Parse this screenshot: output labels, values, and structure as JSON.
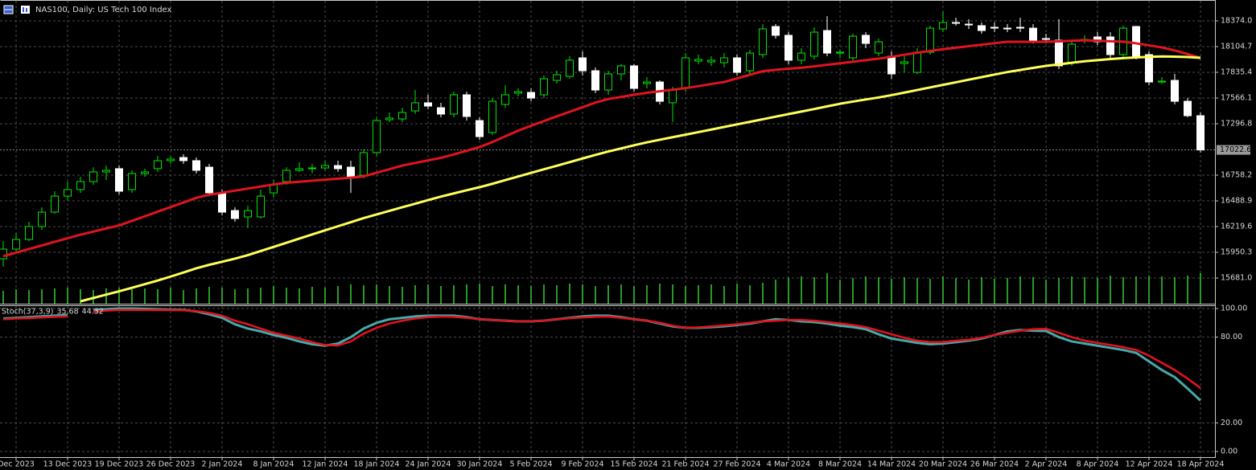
{
  "chart_data": [
    {
      "type": "candlestick",
      "title": "NAS100, Daily:  US Tech 100 Index",
      "categories": [
        null,
        "Dec 2023",
        null,
        null,
        null,
        "13 Dec 2023",
        null,
        null,
        null,
        "19 Dec 2023",
        null,
        null,
        null,
        "26 Dec 2023",
        null,
        null,
        null,
        "2 Jan 2024",
        null,
        null,
        null,
        "8 Jan 2024",
        null,
        null,
        null,
        "12 Jan 2024",
        null,
        null,
        null,
        "18 Jan 2024",
        null,
        null,
        null,
        "24 Jan 2024",
        null,
        null,
        null,
        "30 Jan 2024",
        null,
        null,
        null,
        "5 Feb 2024",
        null,
        null,
        null,
        "9 Feb 2024",
        null,
        null,
        null,
        "15 Feb 2024",
        null,
        null,
        null,
        "21 Feb 2024",
        null,
        null,
        null,
        "27 Feb 2024",
        null,
        null,
        null,
        "4 Mar 2024",
        null,
        null,
        null,
        "8 Mar 2024",
        null,
        null,
        null,
        "14 Mar 2024",
        null,
        null,
        null,
        "20 Mar 2024",
        null,
        null,
        null,
        "26 Mar 2024",
        null,
        null,
        null,
        "2 Apr 2024",
        null,
        null,
        null,
        "8 Apr 2024",
        null,
        null,
        null,
        "12 Apr 2024",
        null,
        null,
        null,
        "18 Apr 2024"
      ],
      "open": [
        15883,
        15984,
        16085,
        16220,
        16371,
        16539,
        16607,
        16691,
        16792,
        16826,
        16607,
        16775,
        16826,
        16910,
        16943,
        16910,
        16842,
        16573,
        16388,
        16321,
        16321,
        16573,
        16691,
        16809,
        16826,
        16834,
        16859,
        16842,
        16758,
        16994,
        17339,
        17347,
        17431,
        17516,
        17465,
        17398,
        17600,
        17330,
        17204,
        17499,
        17617,
        17625,
        17600,
        17751,
        17793,
        17987,
        17852,
        17650,
        17819,
        17903,
        17718,
        17734,
        17516,
        17667,
        17953,
        17945,
        17936,
        17987,
        17852,
        18021,
        18315,
        18223,
        17962,
        18004,
        18273,
        18037,
        17987,
        18223,
        18037,
        18004,
        17928,
        17835,
        18046,
        18290,
        18357,
        18340,
        18324,
        18307,
        18298,
        18307,
        18298,
        18189,
        18172,
        17936,
        18172,
        18206,
        18206,
        18021,
        18315,
        18021,
        17734,
        17751,
        17532,
        17381
      ],
      "high": [
        16068,
        16152,
        16270,
        16422,
        16590,
        16691,
        16741,
        16842,
        16859,
        16859,
        16809,
        16826,
        16960,
        16960,
        16977,
        16943,
        16876,
        16607,
        16422,
        16438,
        16607,
        16708,
        16842,
        16893,
        16876,
        16910,
        16910,
        16910,
        17028,
        17364,
        17415,
        17465,
        17650,
        17600,
        17516,
        17633,
        17633,
        17364,
        17566,
        17701,
        17667,
        17667,
        17802,
        17852,
        18004,
        18054,
        17886,
        17852,
        17920,
        17920,
        17785,
        17751,
        17684,
        18037,
        18021,
        18004,
        18037,
        18021,
        18071,
        18340,
        18340,
        18256,
        18088,
        18307,
        18424,
        18071,
        18239,
        18256,
        18189,
        18054,
        18004,
        18088,
        18324,
        18475,
        18408,
        18391,
        18357,
        18357,
        18340,
        18408,
        18340,
        18239,
        18391,
        18172,
        18223,
        18256,
        18256,
        18324,
        18324,
        18054,
        17785,
        17819,
        17566,
        17415
      ],
      "low": [
        15799,
        15950,
        16068,
        16186,
        16354,
        16489,
        16573,
        16657,
        16708,
        16556,
        16573,
        16741,
        16792,
        16876,
        16876,
        16775,
        16539,
        16337,
        16270,
        16203,
        16304,
        16523,
        16657,
        16792,
        16775,
        16809,
        16792,
        16573,
        16725,
        16960,
        17314,
        17314,
        17398,
        17448,
        17364,
        17364,
        17330,
        17129,
        17179,
        17465,
        17583,
        17532,
        17566,
        17718,
        17768,
        17802,
        17617,
        17600,
        17751,
        17633,
        17667,
        17499,
        17314,
        17633,
        17920,
        17903,
        17886,
        17802,
        17819,
        17987,
        18189,
        17920,
        17920,
        17970,
        18004,
        17987,
        17953,
        18088,
        18004,
        17768,
        17835,
        17819,
        18021,
        18256,
        18324,
        18290,
        18239,
        18256,
        18256,
        18256,
        18138,
        18138,
        17869,
        17903,
        18138,
        18122,
        17987,
        17987,
        17970,
        17701,
        17718,
        17499,
        17364,
        16994
      ],
      "close": [
        15984,
        16085,
        16220,
        16371,
        16539,
        16607,
        16691,
        16792,
        16809,
        16590,
        16775,
        16792,
        16910,
        16927,
        16910,
        16809,
        16573,
        16371,
        16304,
        16388,
        16539,
        16657,
        16809,
        16826,
        16834,
        16859,
        16826,
        16741,
        16994,
        17330,
        17356,
        17415,
        17516,
        17482,
        17398,
        17600,
        17373,
        17162,
        17532,
        17600,
        17633,
        17566,
        17768,
        17810,
        17962,
        17852,
        17650,
        17819,
        17903,
        17667,
        17734,
        17532,
        17650,
        17987,
        17970,
        17962,
        17987,
        17835,
        18037,
        18290,
        18223,
        17962,
        18037,
        18256,
        18037,
        18046,
        18214,
        18138,
        18155,
        17819,
        17945,
        18046,
        18298,
        18357,
        18349,
        18332,
        18273,
        18298,
        18290,
        18298,
        18172,
        18180,
        17903,
        18130,
        18180,
        18155,
        18021,
        18298,
        18004,
        17734,
        17743,
        17532,
        17381,
        17022.6
      ],
      "bull_color": "#00e600",
      "bear_color": "#ffffff",
      "series": [
        {
          "color": "#e0141e",
          "values": [
            15909,
            15947,
            15985,
            16022,
            16060,
            16097,
            16135,
            16167,
            16200,
            16232,
            16279,
            16327,
            16376,
            16424,
            16472,
            16521,
            16553,
            16574,
            16596,
            16618,
            16639,
            16661,
            16678,
            16689,
            16700,
            16711,
            16722,
            16732,
            16746,
            16783,
            16821,
            16859,
            16886,
            16913,
            16940,
            16976,
            17014,
            17052,
            17105,
            17165,
            17224,
            17276,
            17325,
            17374,
            17422,
            17470,
            17518,
            17556,
            17578,
            17600,
            17621,
            17637,
            17653,
            17670,
            17691,
            17713,
            17734,
            17772,
            17810,
            17847,
            17862,
            17873,
            17883,
            17898,
            17914,
            17930,
            17946,
            17963,
            17979,
            17998,
            18019,
            18041,
            18060,
            18077,
            18093,
            18109,
            18125,
            18141,
            18155,
            18155,
            18155,
            18155,
            18160,
            18166,
            18171,
            18167,
            18161,
            18156,
            18139,
            18118,
            18096,
            18064,
            18026,
            17987
          ]
        },
        {
          "color": "#ffff5a",
          "values": [
            null,
            null,
            null,
            null,
            null,
            null,
            15437,
            15472,
            15507,
            15542,
            15579,
            15617,
            15654,
            15696,
            15739,
            15783,
            15819,
            15851,
            15884,
            15921,
            15964,
            16007,
            16050,
            16094,
            16137,
            16180,
            16223,
            16266,
            16309,
            16347,
            16384,
            16422,
            16459,
            16497,
            16534,
            16567,
            16600,
            16632,
            16668,
            16706,
            16744,
            16782,
            16820,
            16857,
            16895,
            16933,
            16970,
            17006,
            17038,
            17071,
            17102,
            17129,
            17156,
            17182,
            17209,
            17236,
            17263,
            17290,
            17317,
            17344,
            17371,
            17398,
            17424,
            17451,
            17479,
            17506,
            17529,
            17551,
            17572,
            17596,
            17623,
            17650,
            17677,
            17704,
            17731,
            17758,
            17785,
            17812,
            17838,
            17860,
            17882,
            17903,
            17919,
            17935,
            17951,
            17963,
            17974,
            17984,
            17991,
            17997,
            18002,
            18000,
            17995,
            17987
          ]
        }
      ],
      "volume": [
        16,
        18,
        17,
        18,
        19,
        20,
        18,
        17,
        19,
        20,
        18,
        19,
        18,
        20,
        17,
        19,
        21,
        20,
        18,
        19,
        20,
        22,
        20,
        19,
        21,
        20,
        22,
        24,
        23,
        24,
        22,
        21,
        23,
        24,
        22,
        23,
        24,
        25,
        22,
        24,
        23,
        22,
        24,
        23,
        25,
        24,
        22,
        23,
        24,
        22,
        23,
        25,
        24,
        22,
        23,
        24,
        22,
        25,
        23,
        26,
        30,
        32,
        34,
        33,
        38,
        30,
        32,
        34,
        33,
        31,
        33,
        32,
        31,
        34,
        32,
        30,
        33,
        31,
        32,
        34,
        33,
        30,
        32,
        34,
        33,
        32,
        35,
        33,
        34,
        35,
        34,
        33,
        35,
        38
      ],
      "volume_color": "#32cd32",
      "volume_ylim": [
        0,
        376
      ],
      "ylim": [
        15412,
        18576
      ],
      "yticks": [
        {
          "value": 18374,
          "label": "18374.0"
        },
        18104.7,
        17835.4,
        17566.1,
        17296.8,
        16758.2,
        16488.9,
        16219.6,
        15950.3,
        {
          "value": 15681,
          "label": "15681.0"
        }
      ],
      "grid": true
    },
    {
      "type": "line",
      "title": "Stoch(37,3,9)",
      "series": [
        {
          "color": "#48a8a8",
          "values": [
            93,
            93.5,
            94,
            94.5,
            95,
            95.5,
            null,
            99,
            99.5,
            100,
            100,
            99.8,
            99.5,
            99.2,
            99,
            98,
            96,
            93.5,
            89,
            86,
            84,
            81.5,
            79.5,
            77,
            75,
            74,
            75.5,
            80,
            86,
            90,
            92.5,
            93.5,
            94.5,
            95,
            95,
            95,
            94,
            92.5,
            92,
            91.5,
            91,
            91,
            91.5,
            92.5,
            93.5,
            94.5,
            95,
            95,
            94,
            92.5,
            91.5,
            89.5,
            87.5,
            86.5,
            86.5,
            87,
            87.6,
            88.5,
            89.5,
            91,
            92.5,
            92,
            91,
            90.5,
            89.5,
            88,
            87,
            85.5,
            82,
            79,
            77.5,
            76,
            75,
            75.5,
            76.5,
            77.5,
            79,
            81.5,
            84,
            85,
            84.5,
            84.3,
            80,
            77,
            75.5,
            74,
            72.5,
            71,
            69,
            63,
            57,
            52,
            44,
            35.68
          ]
        },
        {
          "color": "#e0141e",
          "values": [
            92.5,
            93,
            93.3,
            93.8,
            94.2,
            94.5,
            null,
            97.8,
            98.5,
            99,
            99,
            99,
            99,
            98.9,
            98.8,
            98.2,
            97,
            95,
            91.5,
            89,
            86,
            83,
            81,
            79,
            76.5,
            74.5,
            74.2,
            77,
            82.5,
            86.5,
            89.5,
            91.5,
            93,
            94,
            94.4,
            94.2,
            93.5,
            92.5,
            92,
            91.5,
            91,
            91,
            91.5,
            92.5,
            93.2,
            93.8,
            94.2,
            94.4,
            93.5,
            92.5,
            91.5,
            90,
            88,
            86.5,
            86.8,
            87.5,
            88.2,
            89,
            90,
            91,
            91.5,
            92,
            92,
            91.5,
            90.5,
            89.5,
            88.5,
            87,
            84.5,
            82,
            79.5,
            77.5,
            76.5,
            76.5,
            77.5,
            78.2,
            79.5,
            81.5,
            83,
            84.5,
            85.5,
            85.8,
            83,
            80,
            77.5,
            76,
            74.5,
            73,
            71,
            67,
            62,
            57,
            51,
            44.32
          ]
        }
      ],
      "ylim": [
        -3.4,
        101.7
      ],
      "yticks": [
        {
          "value": 100,
          "label": "100.00"
        },
        {
          "value": 80,
          "label": "80.00"
        },
        {
          "value": 20,
          "label": "20.00"
        },
        {
          "value": 0,
          "label": "0.00"
        }
      ],
      "grid": true
    }
  ]
}
